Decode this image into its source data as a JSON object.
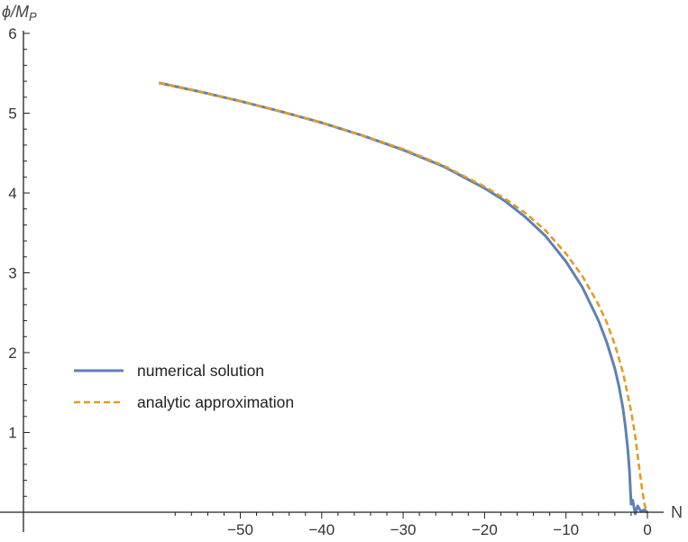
{
  "chart_data": {
    "type": "line",
    "xlabel": "N",
    "ylabel_main": "ϕ/M",
    "ylabel_sub": "P",
    "xlim": [
      -60,
      2
    ],
    "ylim": [
      0,
      6
    ],
    "x_ticks": [
      -50,
      -40,
      -30,
      -20,
      -10,
      0
    ],
    "x_tick_labels": [
      "−50",
      "−40",
      "−30",
      "−20",
      "−10",
      "0"
    ],
    "y_ticks": [
      1,
      2,
      3,
      4,
      5,
      6
    ],
    "y_tick_labels": [
      "1",
      "2",
      "3",
      "4",
      "5",
      "6"
    ],
    "legend_position": "lower-left",
    "series": [
      {
        "name": "numerical solution",
        "color": "#5e81b5",
        "style": "solid",
        "x": [
          -60,
          -55,
          -50,
          -45,
          -40,
          -35,
          -30,
          -25,
          -20,
          -17.5,
          -15,
          -12.5,
          -10,
          -8,
          -6,
          -5,
          -4,
          -3.5,
          -3,
          -2.7,
          -2.4,
          -2.2,
          -2.0,
          -1.8,
          -1.5,
          -1.2,
          -0.8,
          -0.4,
          0
        ],
        "y": [
          5.38,
          5.27,
          5.15,
          5.02,
          4.88,
          4.72,
          4.54,
          4.33,
          4.06,
          3.9,
          3.7,
          3.46,
          3.14,
          2.82,
          2.4,
          2.13,
          1.8,
          1.58,
          1.3,
          1.07,
          0.78,
          0.52,
          0.1,
          0.15,
          -0.02,
          0.08,
          0.01,
          0.03,
          0.0
        ]
      },
      {
        "name": "analytic approximation",
        "color": "#e19c24",
        "style": "dashed",
        "x": [
          -60,
          -55,
          -50,
          -45,
          -40,
          -35,
          -30,
          -25,
          -20,
          -17.5,
          -15,
          -12.5,
          -10,
          -8,
          -6,
          -5,
          -4,
          -3,
          -2,
          -1.5,
          -1.0,
          -0.7,
          -0.4,
          -0.2,
          0.0
        ],
        "y": [
          5.38,
          5.27,
          5.15,
          5.02,
          4.88,
          4.72,
          4.55,
          4.34,
          4.08,
          3.93,
          3.75,
          3.53,
          3.24,
          2.96,
          2.6,
          2.38,
          2.1,
          1.75,
          1.27,
          0.95,
          0.55,
          0.32,
          0.12,
          0.04,
          0.0
        ]
      }
    ]
  }
}
